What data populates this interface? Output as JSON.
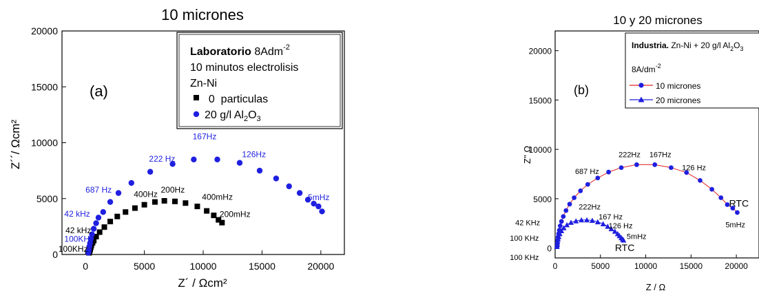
{
  "chart_data": [
    {
      "id": "a",
      "type": "scatter",
      "title": "10 micrones",
      "panel_label": "(a)",
      "xlabel": "Z´ / Ωcm²",
      "ylabel": "Z´´/ Ωcm²",
      "xlim": [
        -2000,
        22000
      ],
      "ylim": [
        0,
        20000
      ],
      "xticks": [
        0,
        5000,
        10000,
        15000,
        20000
      ],
      "yticks": [
        0,
        5000,
        10000,
        15000,
        20000
      ],
      "tick_labels_x": [
        "0",
        "5000",
        "10000",
        "15000",
        "20000"
      ],
      "tick_labels_y": [
        "0",
        "5000",
        "10000",
        "15000",
        "20000"
      ],
      "grid": false,
      "legend": {
        "placement": "top-right",
        "heading_bold": "Laboratorio",
        "heading_rest": " 8Adm",
        "heading_sup": "-2",
        "lines": [
          "10 minutos electrolisis",
          "Zn-Ni"
        ],
        "entries": [
          {
            "marker": "square",
            "label": "  0  particulas"
          },
          {
            "marker": "circle",
            "label_pre": "20 g/l Al",
            "sub1": "2",
            "mid": "O",
            "sub2": "3"
          }
        ]
      },
      "series": [
        {
          "name": "0 particulas",
          "marker": "square",
          "color": "#000000",
          "x": [
            300,
            350,
            400,
            450,
            500,
            600,
            700,
            900,
            1200,
            1600,
            2100,
            2700,
            3400,
            4200,
            5000,
            5900,
            6700,
            7600,
            8500,
            9500,
            10300,
            10900,
            11300,
            11600
          ],
          "y": [
            150,
            300,
            450,
            650,
            850,
            1050,
            1250,
            1600,
            2000,
            2450,
            2950,
            3400,
            3800,
            4150,
            4450,
            4700,
            4800,
            4750,
            4600,
            4300,
            3900,
            3500,
            3100,
            2850
          ]
        },
        {
          "name": "20 g/l Al2O3",
          "marker": "circle",
          "color": "#1f1fe0",
          "x": [
            250,
            280,
            320,
            380,
            450,
            550,
            700,
            900,
            1100,
            1500,
            2100,
            2800,
            3900,
            5500,
            7400,
            9200,
            11200,
            13100,
            14800,
            16200,
            17300,
            18200,
            18900,
            19400,
            19800,
            20100
          ],
          "y": [
            150,
            400,
            700,
            1000,
            1400,
            1800,
            2300,
            2800,
            3300,
            3800,
            4700,
            5500,
            6400,
            7400,
            8100,
            8500,
            8500,
            8200,
            7500,
            6800,
            6100,
            5500,
            4900,
            4550,
            4300,
            3850
          ]
        }
      ],
      "annotations": [
        {
          "text": "167Hz",
          "x": 9100,
          "y": 10300,
          "color": "#1f1fe0"
        },
        {
          "text": "222 Hz",
          "x": 5400,
          "y": 8300,
          "color": "#1f1fe0"
        },
        {
          "text": "126Hz",
          "x": 13300,
          "y": 8700,
          "color": "#1f1fe0"
        },
        {
          "text": "687 Hz",
          "x": 0,
          "y": 5550,
          "color": "#1f1fe0"
        },
        {
          "text": "42 kHz",
          "x": -1800,
          "y": 3400,
          "color": "#1f1fe0"
        },
        {
          "text": "5mHz",
          "x": 18900,
          "y": 4850,
          "color": "#1f1fe0"
        },
        {
          "text": "100KHz",
          "x": -1800,
          "y": 1150,
          "color": "#1f1fe0"
        },
        {
          "text": "400Hz",
          "x": 4100,
          "y": 5150,
          "color": "#000000"
        },
        {
          "text": "200Hz",
          "x": 6400,
          "y": 5550,
          "color": "#000000"
        },
        {
          "text": "400mHz",
          "x": 9900,
          "y": 4900,
          "color": "#000000"
        },
        {
          "text": "200mHz",
          "x": 11400,
          "y": 3350,
          "color": "#000000"
        },
        {
          "text": "42 kHz",
          "x": -1700,
          "y": 1900,
          "color": "#000000"
        },
        {
          "text": "100KHz",
          "x": -2300,
          "y": 250,
          "color": "#000000"
        }
      ]
    },
    {
      "id": "b",
      "type": "line",
      "title": "10 y 20 micrones",
      "panel_label": "(b)",
      "xlabel": "Z / Ω",
      "ylabel": "Z'' Ω",
      "xlim": [
        0,
        22500
      ],
      "ylim": [
        -1000,
        22000
      ],
      "xticks": [
        0,
        5000,
        10000,
        15000,
        20000
      ],
      "yticks": [
        0,
        5000,
        10000,
        15000,
        20000
      ],
      "tick_labels_x": [
        "0",
        "5000",
        "10000",
        "15000",
        "20000"
      ],
      "tick_labels_y": [
        "0",
        "5000",
        "10000",
        "15000",
        "20000"
      ],
      "grid": false,
      "legend": {
        "placement": "top-right",
        "heading_bold": "Industria.",
        "heading_rest": " Zn-Ni + 20 g/l Al",
        "heading_sub1": "2",
        "heading_mid": "O",
        "heading_sub2": "3",
        "line2": "8A/dm",
        "line2_sup": "-2",
        "entries": [
          {
            "marker": "circle",
            "label": "10 micrones",
            "line_color": "#e02020"
          },
          {
            "marker": "triangle",
            "label": "20 micrones",
            "line_color": "#1f1fe0"
          }
        ]
      },
      "series": [
        {
          "name": "10 micrones",
          "marker": "circle",
          "color": "#1f1fe0",
          "line_color": "#e02020",
          "x": [
            250,
            260,
            280,
            320,
            380,
            460,
            560,
            700,
            900,
            1200,
            1600,
            2100,
            2800,
            3600,
            4700,
            5900,
            7300,
            9000,
            11000,
            12800,
            14500,
            16000,
            17300,
            18300,
            19000,
            19600,
            20100
          ],
          "y": [
            200,
            500,
            800,
            1100,
            1450,
            1800,
            2250,
            2700,
            3200,
            3800,
            4450,
            5100,
            5800,
            6450,
            7100,
            7700,
            8150,
            8450,
            8450,
            8150,
            7650,
            6850,
            5950,
            5100,
            4400,
            4050,
            3600
          ]
        },
        {
          "name": "20 micrones",
          "marker": "triangle",
          "color": "#1f1fe0",
          "line_color": "#1f1fe0",
          "x": [
            200,
            220,
            260,
            320,
            400,
            520,
            700,
            950,
            1300,
            1750,
            2300,
            2900,
            3500,
            4100,
            4700,
            5300,
            5800,
            6200,
            6600,
            6900,
            7100,
            7300,
            7450,
            7550
          ],
          "y": [
            150,
            400,
            650,
            900,
            1150,
            1450,
            1750,
            2050,
            2350,
            2600,
            2750,
            2850,
            2850,
            2800,
            2650,
            2450,
            2200,
            1950,
            1700,
            1450,
            1250,
            1050,
            900,
            800
          ]
        }
      ],
      "annotations": [
        {
          "text": "222Hz",
          "x": 7000,
          "y": 9200
        },
        {
          "text": "167Hz",
          "x": 10400,
          "y": 9200
        },
        {
          "text": "126 Hz",
          "x": 14000,
          "y": 7900
        },
        {
          "text": "687 Hz",
          "x": 2200,
          "y": 7500
        },
        {
          "text": "RTC",
          "x": 19200,
          "y": 4200,
          "big": true
        },
        {
          "text": "5mHz",
          "x": 18800,
          "y": 2100
        },
        {
          "text": "222Hz",
          "x": 2600,
          "y": 3900
        },
        {
          "text": "167 Hz",
          "x": 4800,
          "y": 2900
        },
        {
          "text": "126 Hz",
          "x": 5900,
          "y": 2000
        },
        {
          "text": "5mHz",
          "x": 7900,
          "y": 900
        },
        {
          "text": "RTC",
          "x": 6600,
          "y": -300,
          "big": true
        },
        {
          "text": "42 KHz",
          "x": -4400,
          "y": 2300
        },
        {
          "text": "100 KHz",
          "x": -5000,
          "y": 750
        },
        {
          "text": "100 KHz",
          "x": -5000,
          "y": -1200
        }
      ]
    }
  ]
}
